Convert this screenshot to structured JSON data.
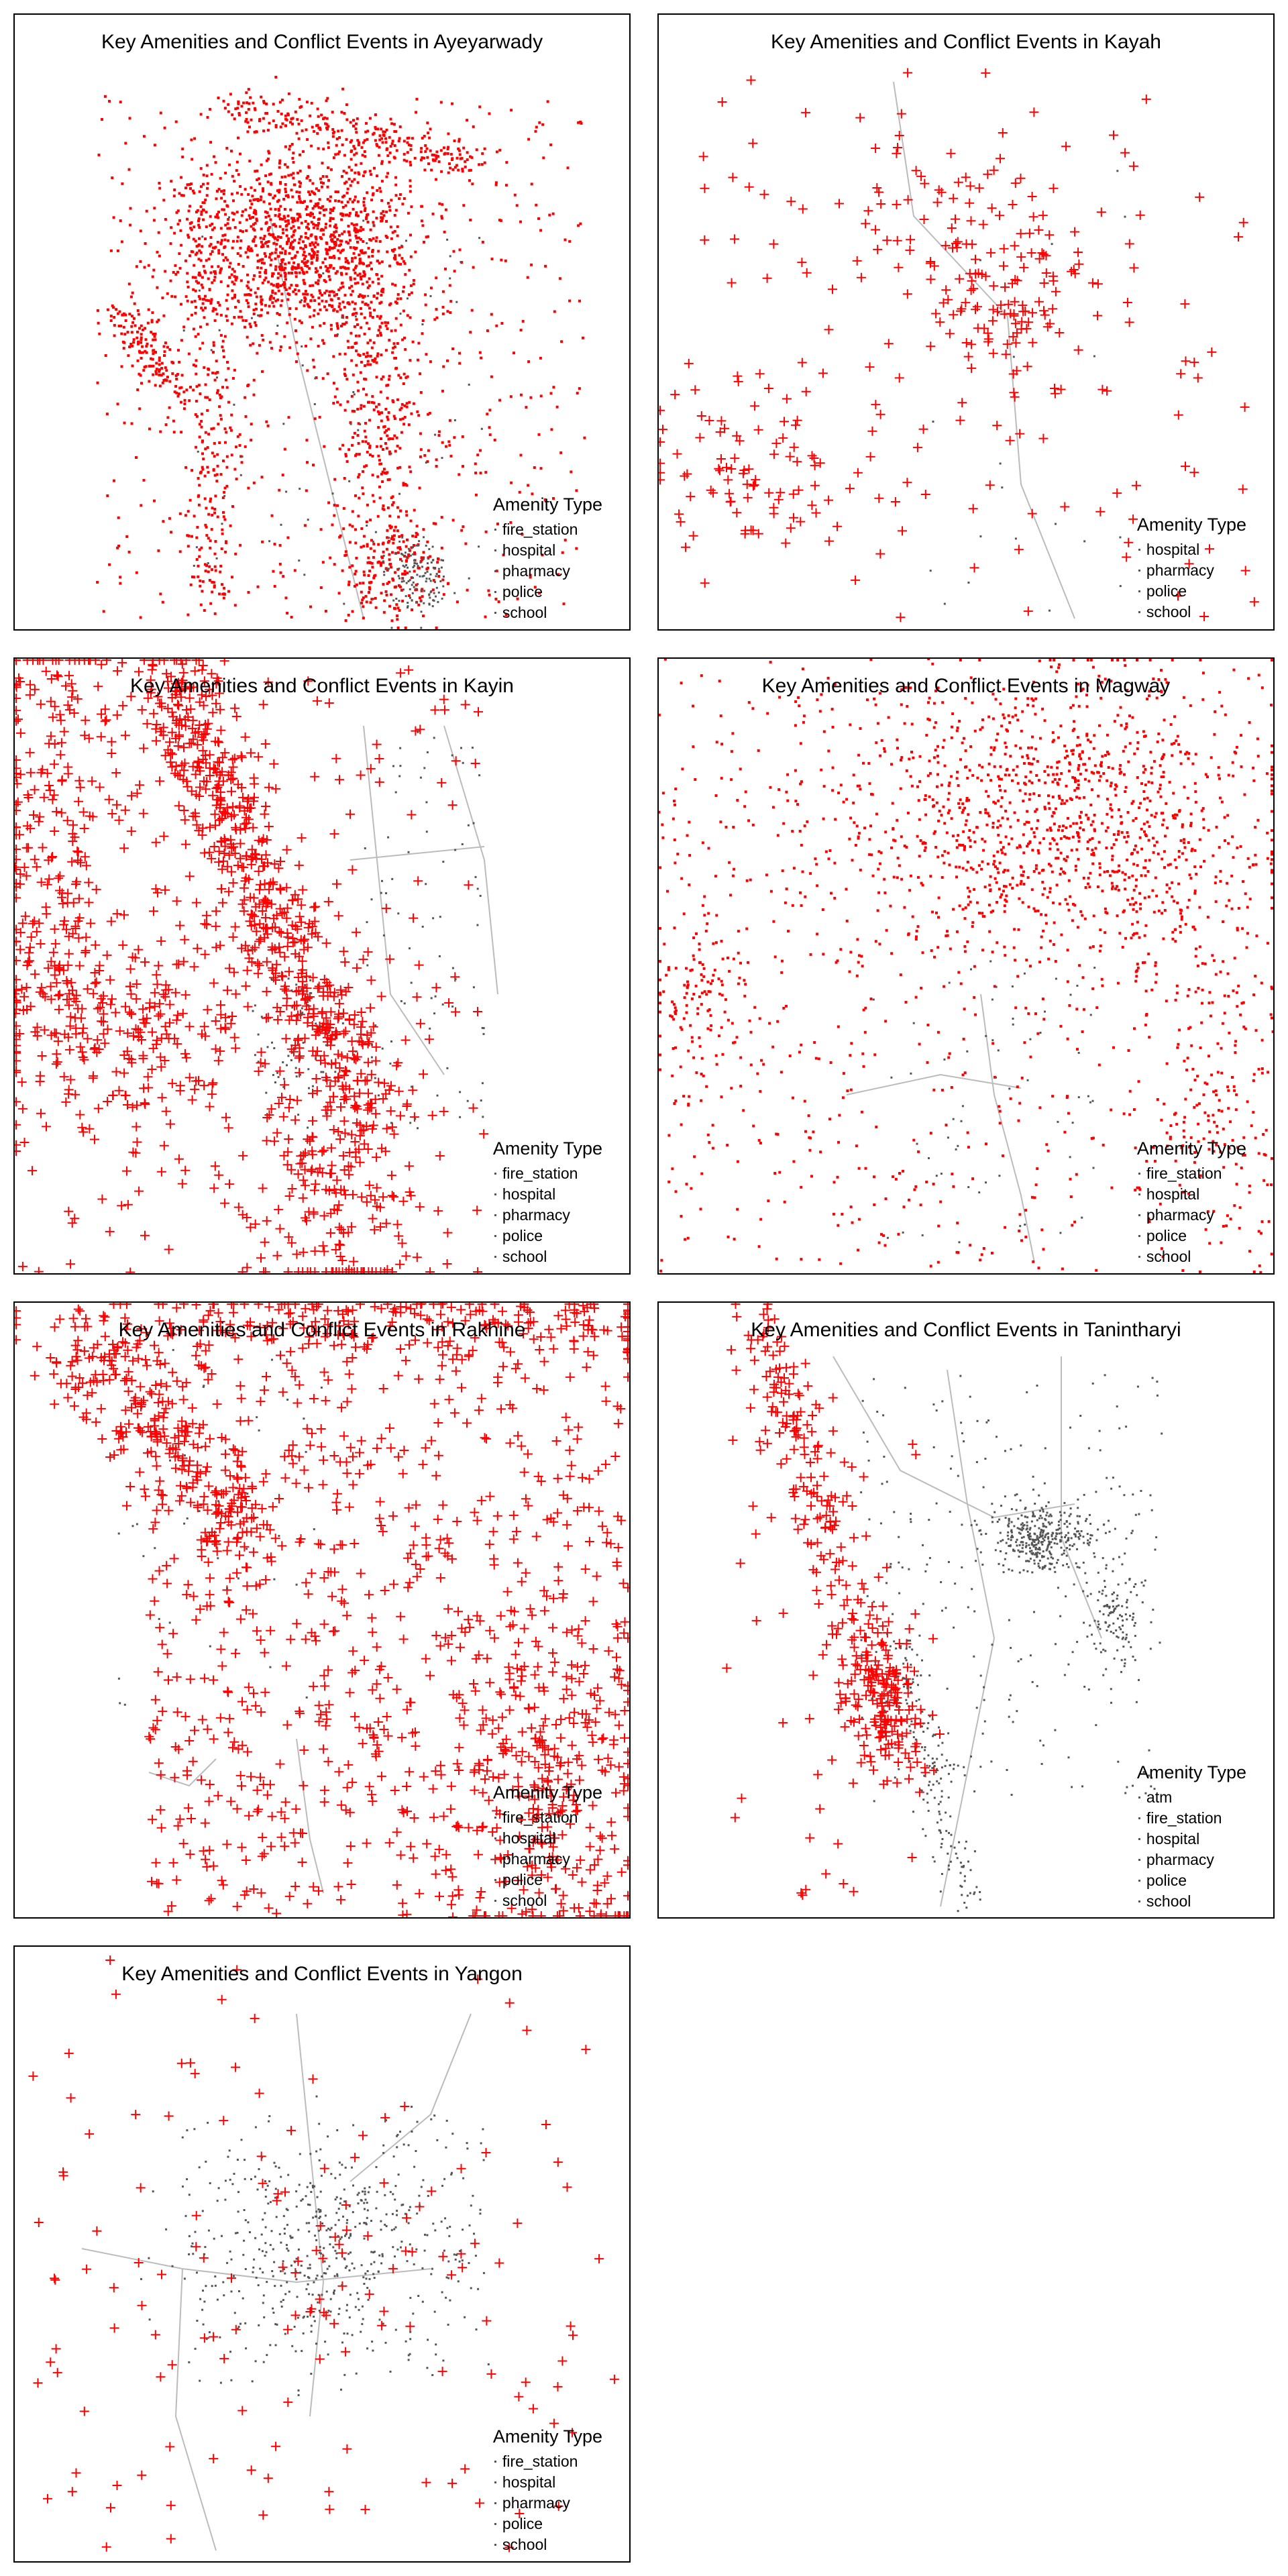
{
  "colors": {
    "conflict": "#ff0000",
    "amenity": "#555555",
    "road": "#bbbbbb",
    "frame": "#000000",
    "background": "#ffffff"
  },
  "chart_data": [
    {
      "type": "scatter",
      "region": "Ayeyarwady",
      "title": "Key Amenities and Conflict Events in Ayeyarwady",
      "legend_title": "Amenity Type",
      "legend_items": [
        "fire_station",
        "hospital",
        "pharmacy",
        "police",
        "school"
      ],
      "legend_placement": "bottom-right",
      "conflict_marker": "dot",
      "conflict_density": "very high, concentrated in upper-center",
      "amenity_density": "low",
      "grid": false
    },
    {
      "type": "scatter",
      "region": "Kayah",
      "title": "Key Amenities and Conflict Events in Kayah",
      "legend_title": "Amenity Type",
      "legend_items": [
        "hospital",
        "pharmacy",
        "police",
        "school"
      ],
      "legend_placement": "bottom-right",
      "conflict_marker": "plus",
      "conflict_density": "moderate, cluster in upper-right center",
      "amenity_density": "very low",
      "grid": false
    },
    {
      "type": "scatter",
      "region": "Kayin",
      "title": "Key Amenities and Conflict Events in Kayin",
      "legend_title": "Amenity Type",
      "legend_items": [
        "fire_station",
        "hospital",
        "pharmacy",
        "police",
        "school"
      ],
      "legend_placement": "bottom-right",
      "conflict_marker": "plus",
      "conflict_density": "high, western half",
      "amenity_density": "low, eastern side",
      "grid": false
    },
    {
      "type": "scatter",
      "region": "Magway",
      "title": "Key Amenities and Conflict Events in Magway",
      "legend_title": "Amenity Type",
      "legend_items": [
        "fire_station",
        "hospital",
        "pharmacy",
        "police",
        "school"
      ],
      "legend_placement": "bottom-right",
      "conflict_marker": "dot",
      "conflict_density": "very high, upper half",
      "amenity_density": "low",
      "grid": false
    },
    {
      "type": "scatter",
      "region": "Rakhine",
      "title": "Key Amenities and Conflict Events in Rakhine",
      "legend_title": "Amenity Type",
      "legend_items": [
        "fire_station",
        "hospital",
        "pharmacy",
        "police",
        "school"
      ],
      "legend_placement": "bottom-right",
      "conflict_marker": "plus",
      "conflict_density": "very high",
      "amenity_density": "low",
      "grid": false
    },
    {
      "type": "scatter",
      "region": "Tanintharyi",
      "title": "Key Amenities and Conflict Events in Tanintharyi",
      "legend_title": "Amenity Type",
      "legend_items": [
        "atm",
        "fire_station",
        "hospital",
        "pharmacy",
        "police",
        "school"
      ],
      "legend_placement": "bottom-right",
      "conflict_marker": "plus",
      "conflict_density": "moderate, western coast",
      "amenity_density": "moderate, cluster center-right",
      "grid": false
    },
    {
      "type": "scatter",
      "region": "Yangon",
      "title": "Key Amenities and Conflict Events in Yangon",
      "legend_title": "Amenity Type",
      "legend_items": [
        "fire_station",
        "hospital",
        "pharmacy",
        "police",
        "school"
      ],
      "legend_placement": "bottom-right",
      "conflict_marker": "plus",
      "conflict_density": "low, scattered",
      "amenity_density": "moderate, central cluster",
      "grid": false
    }
  ]
}
